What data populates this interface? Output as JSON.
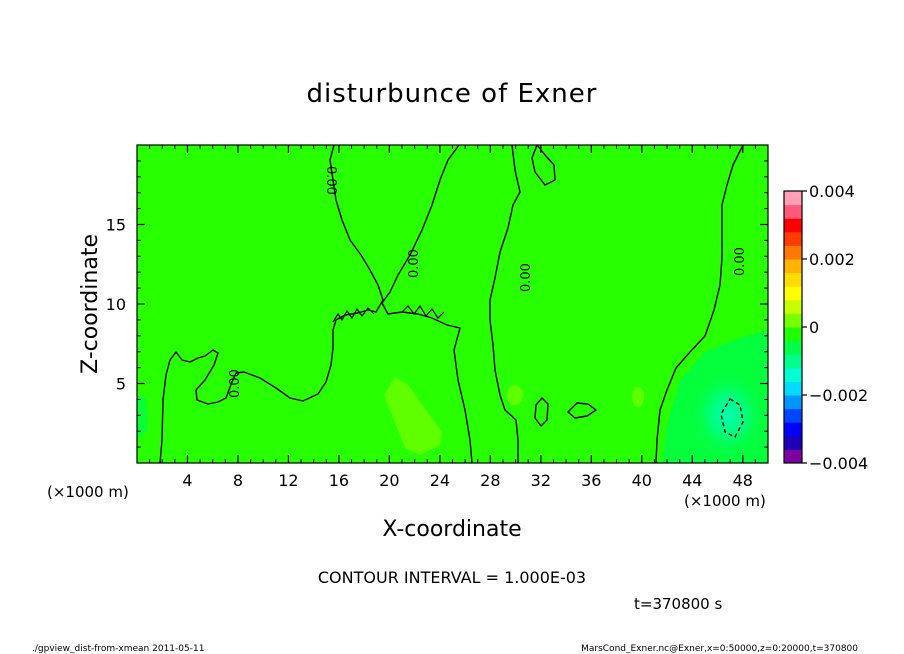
{
  "chart_data": {
    "type": "heatmap",
    "title": "disturbunce of Exner",
    "xlabel": "X-coordinate",
    "ylabel": "Z-coordinate",
    "x_unit_label": "(×1000 m)",
    "x_ticks": [
      4,
      8,
      12,
      16,
      20,
      24,
      28,
      32,
      36,
      40,
      44,
      48
    ],
    "y_ticks": [
      5,
      10,
      15
    ],
    "xlim": [
      0,
      50
    ],
    "ylim": [
      0,
      20
    ],
    "contour_label": "0.00",
    "contour_interval_text": "CONTOUR INTERVAL = 1.000E-03",
    "colorbar": {
      "tick_labels": [
        "0.004",
        "0.002",
        "0",
        "−0.002",
        "−0.004"
      ],
      "tick_values": [
        0.004,
        0.002,
        0,
        -0.002,
        -0.004
      ],
      "range": [
        -0.004,
        0.004
      ],
      "colors": [
        "#7d00a0",
        "#1e00b4",
        "#0000ff",
        "#0046ff",
        "#0096ff",
        "#00dcff",
        "#00ffd2",
        "#00ff8c",
        "#00ff46",
        "#1eff00",
        "#78ff00",
        "#c8ff00",
        "#ffff00",
        "#ffdc00",
        "#ffb400",
        "#ff7800",
        "#ff3c00",
        "#ff0000",
        "#ff5a78",
        "#ffa0b4"
      ]
    }
  },
  "time_text": "t=370800 s",
  "footer": {
    "left": "./gpview_dist-from-xmean  2011-05-11",
    "right": "MarsCond_Exner.nc@Exner,x=0:50000,z=0:20000,t=370800"
  }
}
